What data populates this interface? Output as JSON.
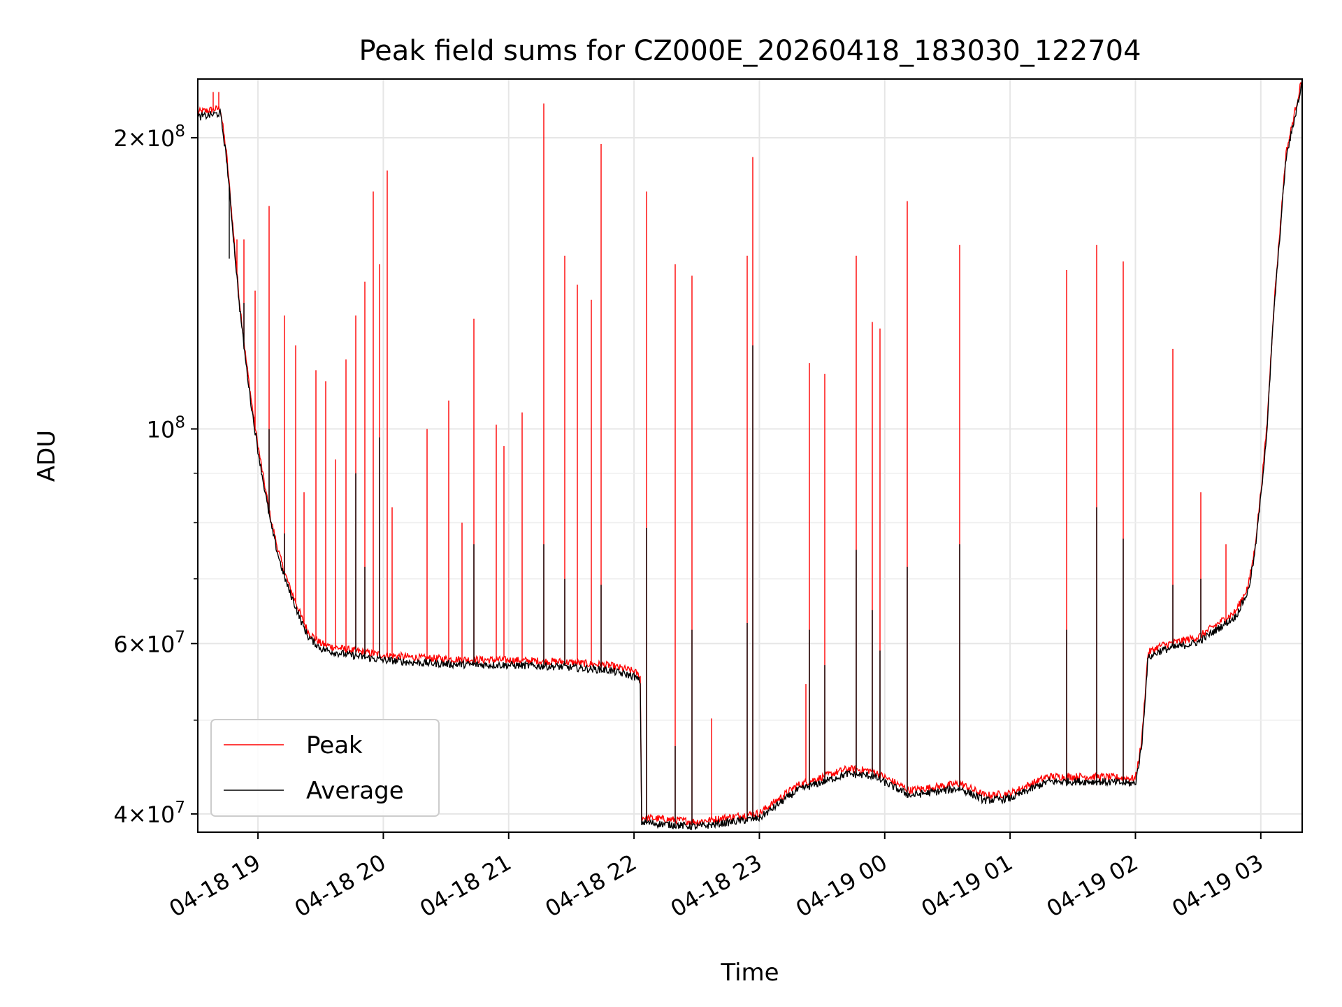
{
  "chart_data": {
    "type": "line",
    "title": "Peak field sums for CZ000E_20260418_183030_122704",
    "xlabel": "Time",
    "ylabel": "ADU",
    "yscale": "log",
    "ylim": [
      38300000,
      230000000
    ],
    "xlim_hours": [
      -0.48,
      8.33
    ],
    "grid": true,
    "legend_position": "lower-left",
    "x_tick_labels": [
      "04-18 19",
      "04-18 20",
      "04-18 21",
      "04-18 22",
      "04-18 23",
      "04-19 00",
      "04-19 01",
      "04-19 02",
      "04-19 03"
    ],
    "x_tick_hours": [
      0,
      1,
      2,
      3,
      4,
      5,
      6,
      7,
      8
    ],
    "y_major_ticks": [
      {
        "value": 40000000,
        "mantissa": "4",
        "exponent": "7"
      },
      {
        "value": 60000000,
        "mantissa": "6",
        "exponent": "7"
      },
      {
        "value": 100000000,
        "mantissa": "",
        "exponent": "8"
      },
      {
        "value": 200000000,
        "mantissa": "2",
        "exponent": "8"
      }
    ],
    "y_minor_ticks": [
      50000000,
      70000000,
      80000000,
      90000000
    ],
    "baseline": {
      "hours": [
        -0.48,
        -0.3,
        -0.25,
        -0.2,
        -0.15,
        -0.1,
        -0.05,
        0.0,
        0.05,
        0.1,
        0.15,
        0.2,
        0.25,
        0.3,
        0.35,
        0.4,
        0.5,
        0.6,
        0.7,
        0.8,
        1.0,
        1.3,
        1.6,
        2.0,
        2.4,
        2.8,
        3.0,
        3.05,
        3.06,
        3.5,
        4.0,
        4.3,
        4.7,
        4.9,
        5.2,
        5.6,
        5.8,
        6.0,
        6.3,
        6.7,
        7.0,
        7.05,
        7.1,
        7.2,
        7.5,
        7.8,
        7.9,
        7.95,
        8.0,
        8.05,
        8.1,
        8.2,
        8.33
      ],
      "average": [
        210000000,
        212000000,
        190000000,
        160000000,
        135000000,
        118000000,
        105000000,
        95000000,
        87000000,
        80000000,
        75000000,
        71000000,
        68000000,
        65500000,
        63000000,
        61000000,
        59300000,
        58800000,
        58500000,
        58200000,
        57700000,
        57300000,
        57100000,
        57000000,
        56800000,
        56300000,
        55500000,
        54800000,
        39200000,
        38800000,
        39600000,
        42300000,
        44000000,
        43800000,
        41800000,
        42500000,
        41300000,
        41500000,
        43200000,
        43200000,
        43000000,
        47000000,
        58000000,
        59000000,
        60200000,
        64000000,
        68000000,
        74000000,
        85000000,
        100000000,
        130000000,
        190000000,
        228000000
      ],
      "peak_offset": 0.012
    },
    "series": [
      {
        "name": "Peak",
        "color": "#ff0000",
        "spikes": [
          {
            "hour": -0.36,
            "value": 223000000
          },
          {
            "hour": -0.31,
            "value": 223000000
          },
          {
            "hour": -0.23,
            "value": 176000000
          },
          {
            "hour": -0.17,
            "value": 157000000
          },
          {
            "hour": -0.11,
            "value": 157000000
          },
          {
            "hour": -0.02,
            "value": 139000000
          },
          {
            "hour": 0.09,
            "value": 170000000
          },
          {
            "hour": 0.21,
            "value": 131000000
          },
          {
            "hour": 0.3,
            "value": 122000000
          },
          {
            "hour": 0.37,
            "value": 86000000
          },
          {
            "hour": 0.46,
            "value": 115000000
          },
          {
            "hour": 0.54,
            "value": 112000000
          },
          {
            "hour": 0.62,
            "value": 93000000
          },
          {
            "hour": 0.7,
            "value": 118000000
          },
          {
            "hour": 0.78,
            "value": 131000000
          },
          {
            "hour": 0.85,
            "value": 142000000
          },
          {
            "hour": 0.92,
            "value": 176000000
          },
          {
            "hour": 0.97,
            "value": 148000000
          },
          {
            "hour": 1.03,
            "value": 185000000
          },
          {
            "hour": 1.07,
            "value": 83000000
          },
          {
            "hour": 1.35,
            "value": 100000000
          },
          {
            "hour": 1.52,
            "value": 107000000
          },
          {
            "hour": 1.63,
            "value": 80000000
          },
          {
            "hour": 1.72,
            "value": 130000000
          },
          {
            "hour": 1.9,
            "value": 101000000
          },
          {
            "hour": 1.96,
            "value": 96000000
          },
          {
            "hour": 2.11,
            "value": 104000000
          },
          {
            "hour": 2.28,
            "value": 217000000
          },
          {
            "hour": 2.45,
            "value": 151000000
          },
          {
            "hour": 2.55,
            "value": 141000000
          },
          {
            "hour": 2.66,
            "value": 136000000
          },
          {
            "hour": 2.74,
            "value": 197000000
          },
          {
            "hour": 3.1,
            "value": 176000000
          },
          {
            "hour": 3.33,
            "value": 148000000
          },
          {
            "hour": 3.46,
            "value": 144000000
          },
          {
            "hour": 3.62,
            "value": 50200000
          },
          {
            "hour": 3.9,
            "value": 151000000
          },
          {
            "hour": 3.95,
            "value": 191000000
          },
          {
            "hour": 4.37,
            "value": 54500000
          },
          {
            "hour": 4.4,
            "value": 117000000
          },
          {
            "hour": 4.52,
            "value": 114000000
          },
          {
            "hour": 4.77,
            "value": 151000000
          },
          {
            "hour": 4.9,
            "value": 129000000
          },
          {
            "hour": 4.96,
            "value": 127000000
          },
          {
            "hour": 5.18,
            "value": 172000000
          },
          {
            "hour": 5.6,
            "value": 155000000
          },
          {
            "hour": 6.45,
            "value": 146000000
          },
          {
            "hour": 6.69,
            "value": 155000000
          },
          {
            "hour": 6.9,
            "value": 149000000
          },
          {
            "hour": 7.3,
            "value": 121000000
          },
          {
            "hour": 7.52,
            "value": 86000000
          },
          {
            "hour": 7.72,
            "value": 76000000
          }
        ]
      },
      {
        "name": "Average",
        "color": "#000000",
        "spikes": [
          {
            "hour": -0.23,
            "value": 150000000
          },
          {
            "hour": -0.11,
            "value": 135000000
          },
          {
            "hour": 0.09,
            "value": 100000000
          },
          {
            "hour": 0.21,
            "value": 78000000
          },
          {
            "hour": 0.78,
            "value": 90000000
          },
          {
            "hour": 0.85,
            "value": 72000000
          },
          {
            "hour": 0.97,
            "value": 98000000
          },
          {
            "hour": 1.72,
            "value": 76000000
          },
          {
            "hour": 2.28,
            "value": 76000000
          },
          {
            "hour": 2.45,
            "value": 70000000
          },
          {
            "hour": 2.74,
            "value": 69000000
          },
          {
            "hour": 3.1,
            "value": 79000000
          },
          {
            "hour": 3.33,
            "value": 47000000
          },
          {
            "hour": 3.46,
            "value": 62000000
          },
          {
            "hour": 3.9,
            "value": 63000000
          },
          {
            "hour": 3.95,
            "value": 122000000
          },
          {
            "hour": 4.4,
            "value": 62000000
          },
          {
            "hour": 4.52,
            "value": 57000000
          },
          {
            "hour": 4.77,
            "value": 75000000
          },
          {
            "hour": 4.9,
            "value": 65000000
          },
          {
            "hour": 4.96,
            "value": 59000000
          },
          {
            "hour": 5.18,
            "value": 72000000
          },
          {
            "hour": 5.6,
            "value": 76000000
          },
          {
            "hour": 6.45,
            "value": 62000000
          },
          {
            "hour": 6.69,
            "value": 83000000
          },
          {
            "hour": 6.9,
            "value": 77000000
          },
          {
            "hour": 7.3,
            "value": 69000000
          },
          {
            "hour": 7.52,
            "value": 70000000
          }
        ]
      }
    ]
  }
}
